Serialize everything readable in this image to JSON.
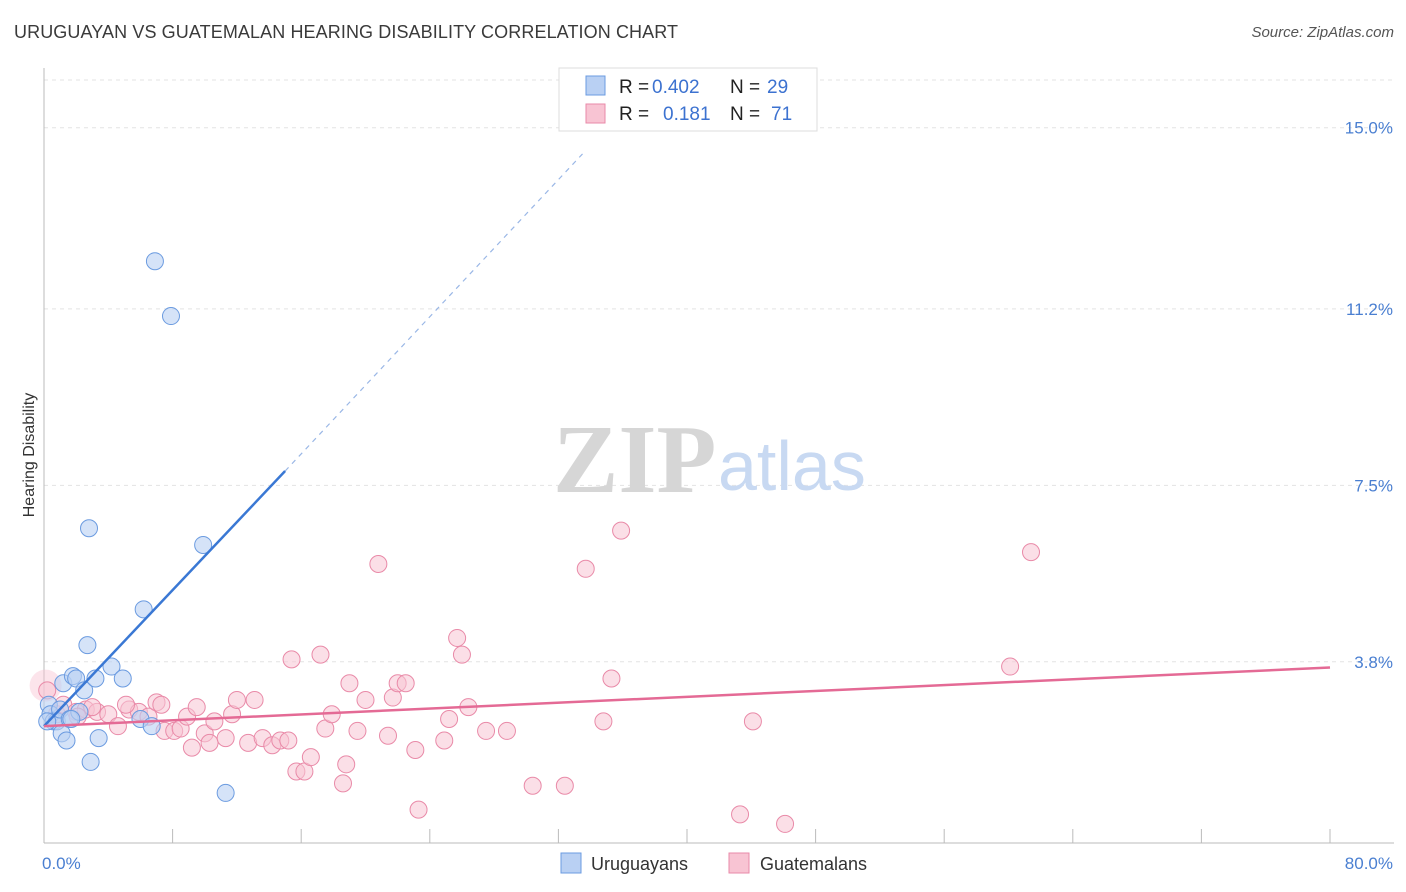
{
  "title": "URUGUAYAN VS GUATEMALAN HEARING DISABILITY CORRELATION CHART",
  "source": "Source: ZipAtlas.com",
  "watermark": {
    "zip": "ZIP",
    "atlas": "atlas"
  },
  "colors": {
    "blue_fill": "#b9d0f3",
    "blue_stroke": "#6b9be0",
    "blue_line": "#3a78d4",
    "pink_fill": "#f8c4d3",
    "pink_stroke": "#e98aa8",
    "pink_line": "#e46a95",
    "tick_text": "#4a7fd1",
    "grid": "#e3e3e3"
  },
  "legend": {
    "rows": [
      {
        "r_label": "R =",
        "r_value": "0.402",
        "n_label": "N =",
        "n_value": "29"
      },
      {
        "r_label": "R =",
        "r_value": "0.181",
        "n_label": "N =",
        "n_value": "71"
      }
    ]
  },
  "chart_data": {
    "type": "scatter",
    "title": "URUGUAYAN VS GUATEMALAN HEARING DISABILITY CORRELATION CHART",
    "xlabel": "",
    "ylabel": "Hearing Disability",
    "xlim": [
      0,
      80
    ],
    "ylim": [
      0,
      16
    ],
    "x_tick_labels": [
      "0.0%",
      "80.0%"
    ],
    "y_ticks": [
      3.8,
      7.5,
      11.2,
      15.0
    ],
    "y_tick_labels": [
      "3.8%",
      "7.5%",
      "11.2%",
      "15.0%"
    ],
    "grid": true,
    "legend_position": "bottom-center",
    "series": [
      {
        "name": "Uruguayans",
        "r": 0.402,
        "n": 29,
        "trend": {
          "x0": 0,
          "y0": 2.45,
          "x1": 15,
          "y1": 7.8,
          "dash_to_x": 33.5,
          "dash_to_y": 14.45
        },
        "points": [
          [
            0.3,
            2.9
          ],
          [
            0.4,
            2.7
          ],
          [
            0.6,
            2.55
          ],
          [
            0.8,
            2.55
          ],
          [
            1.0,
            2.8
          ],
          [
            1.1,
            2.3
          ],
          [
            1.2,
            3.35
          ],
          [
            1.4,
            2.15
          ],
          [
            1.6,
            2.6
          ],
          [
            1.8,
            3.5
          ],
          [
            2.0,
            3.45
          ],
          [
            2.2,
            2.75
          ],
          [
            2.5,
            3.2
          ],
          [
            2.7,
            4.15
          ],
          [
            2.8,
            6.6
          ],
          [
            2.9,
            1.7
          ],
          [
            3.2,
            3.45
          ],
          [
            3.4,
            2.2
          ],
          [
            4.2,
            3.7
          ],
          [
            4.9,
            3.45
          ],
          [
            6.0,
            2.6
          ],
          [
            6.2,
            4.9
          ],
          [
            6.7,
            2.45
          ],
          [
            6.9,
            12.2
          ],
          [
            7.9,
            11.05
          ],
          [
            9.9,
            6.25
          ],
          [
            11.3,
            1.05
          ],
          [
            0.2,
            2.55
          ],
          [
            1.7,
            2.6
          ]
        ]
      },
      {
        "name": "Guatemalans",
        "r": 0.181,
        "n": 71,
        "trend": {
          "x0": 0,
          "y0": 2.45,
          "x1": 80,
          "y1": 3.68
        },
        "points": [
          [
            0.2,
            3.2
          ],
          [
            0.8,
            2.7
          ],
          [
            1.2,
            2.9
          ],
          [
            2.0,
            2.75
          ],
          [
            2.6,
            2.8
          ],
          [
            3.3,
            2.75
          ],
          [
            4.0,
            2.7
          ],
          [
            4.6,
            2.45
          ],
          [
            5.3,
            2.8
          ],
          [
            5.9,
            2.75
          ],
          [
            6.5,
            2.65
          ],
          [
            7.0,
            2.95
          ],
          [
            7.5,
            2.35
          ],
          [
            8.1,
            2.35
          ],
          [
            8.5,
            2.4
          ],
          [
            8.9,
            2.65
          ],
          [
            9.5,
            2.85
          ],
          [
            10.0,
            2.3
          ],
          [
            10.3,
            2.1
          ],
          [
            10.6,
            2.55
          ],
          [
            11.3,
            2.2
          ],
          [
            11.7,
            2.7
          ],
          [
            12.0,
            3.0
          ],
          [
            12.7,
            2.1
          ],
          [
            13.1,
            3.0
          ],
          [
            13.6,
            2.2
          ],
          [
            14.2,
            2.05
          ],
          [
            14.7,
            2.15
          ],
          [
            15.2,
            2.15
          ],
          [
            15.4,
            3.85
          ],
          [
            15.7,
            1.5
          ],
          [
            16.2,
            1.5
          ],
          [
            16.6,
            1.8
          ],
          [
            17.2,
            3.95
          ],
          [
            17.5,
            2.4
          ],
          [
            17.9,
            2.7
          ],
          [
            18.6,
            1.25
          ],
          [
            18.8,
            1.65
          ],
          [
            19.0,
            3.35
          ],
          [
            19.5,
            2.35
          ],
          [
            20.0,
            3.0
          ],
          [
            20.8,
            5.85
          ],
          [
            21.4,
            2.25
          ],
          [
            21.7,
            3.05
          ],
          [
            22.0,
            3.35
          ],
          [
            22.5,
            3.35
          ],
          [
            23.1,
            1.95
          ],
          [
            23.3,
            0.7
          ],
          [
            24.9,
            2.15
          ],
          [
            25.2,
            2.6
          ],
          [
            25.7,
            4.3
          ],
          [
            26.0,
            3.95
          ],
          [
            26.4,
            2.85
          ],
          [
            27.5,
            2.35
          ],
          [
            28.8,
            2.35
          ],
          [
            30.4,
            1.2
          ],
          [
            32.4,
            1.2
          ],
          [
            33.7,
            5.75
          ],
          [
            34.8,
            2.55
          ],
          [
            35.3,
            3.45
          ],
          [
            35.9,
            6.55
          ],
          [
            43.3,
            0.6
          ],
          [
            44.1,
            2.55
          ],
          [
            46.1,
            0.4
          ],
          [
            60.1,
            3.7
          ],
          [
            61.4,
            6.1
          ],
          [
            3.0,
            2.85
          ],
          [
            2.1,
            2.65
          ],
          [
            7.3,
            2.9
          ],
          [
            9.2,
            2.0
          ],
          [
            5.1,
            2.9
          ]
        ]
      }
    ]
  },
  "bottom_legend": [
    {
      "label": "Uruguayans"
    },
    {
      "label": "Guatemalans"
    }
  ]
}
